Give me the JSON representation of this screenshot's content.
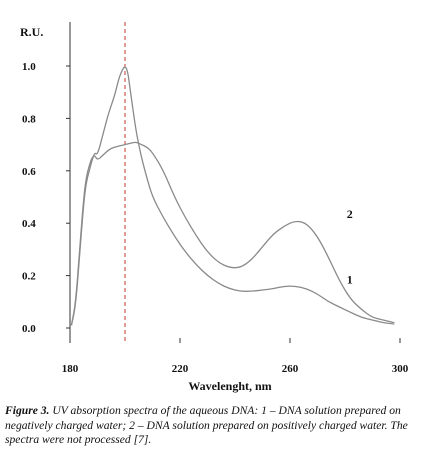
{
  "chart_data": {
    "type": "line",
    "ylabel": "R.U.",
    "xlabel": "Wavelenght, nm",
    "xlim": [
      180,
      300
    ],
    "ylim": [
      0,
      1.0
    ],
    "x_ticks": [
      "180",
      "220",
      "260",
      "300"
    ],
    "y_ticks": [
      "0.0",
      "0.2",
      "0.4",
      "0.6",
      "0.8",
      "1.0"
    ],
    "reference_line": {
      "x": 200,
      "style": "dashed",
      "color": "#c0392b"
    },
    "series": [
      {
        "name": "1",
        "color": "#8a8a8a",
        "x": [
          180.5,
          182,
          183.5,
          185,
          186,
          187,
          188,
          189,
          190,
          192,
          194,
          196,
          197,
          198,
          199,
          200,
          201,
          202,
          204,
          206,
          208,
          210,
          214,
          218,
          222,
          226,
          230,
          234,
          238,
          242,
          246,
          250,
          254,
          258,
          262,
          266,
          270,
          274,
          278,
          282,
          286,
          290,
          294,
          298
        ],
        "values": [
          0.01,
          0.08,
          0.28,
          0.48,
          0.56,
          0.6,
          0.64,
          0.67,
          0.66,
          0.74,
          0.82,
          0.88,
          0.92,
          0.96,
          0.985,
          1.0,
          0.98,
          0.9,
          0.75,
          0.65,
          0.57,
          0.5,
          0.42,
          0.35,
          0.29,
          0.24,
          0.2,
          0.17,
          0.15,
          0.14,
          0.14,
          0.145,
          0.15,
          0.16,
          0.16,
          0.15,
          0.13,
          0.1,
          0.08,
          0.06,
          0.04,
          0.03,
          0.02,
          0.015
        ]
      },
      {
        "name": "2",
        "color": "#8a8a8a",
        "x": [
          180.5,
          182,
          183.5,
          185,
          186,
          187,
          188,
          189,
          190,
          192,
          194,
          196,
          198,
          200,
          202,
          204,
          206,
          208,
          210,
          214,
          218,
          222,
          226,
          230,
          234,
          238,
          242,
          246,
          250,
          254,
          258,
          262,
          266,
          270,
          274,
          278,
          282,
          286,
          290,
          294,
          298
        ],
        "values": [
          0.01,
          0.09,
          0.3,
          0.5,
          0.58,
          0.62,
          0.65,
          0.66,
          0.64,
          0.66,
          0.68,
          0.69,
          0.695,
          0.7,
          0.705,
          0.71,
          0.7,
          0.69,
          0.67,
          0.6,
          0.5,
          0.42,
          0.35,
          0.29,
          0.25,
          0.23,
          0.23,
          0.26,
          0.31,
          0.36,
          0.39,
          0.41,
          0.4,
          0.35,
          0.27,
          0.18,
          0.11,
          0.07,
          0.04,
          0.03,
          0.02
        ]
      }
    ],
    "series_labels": [
      {
        "text": "1",
        "x": 281,
        "y": 0.17
      },
      {
        "text": "2",
        "x": 281,
        "y": 0.42
      }
    ]
  },
  "caption": {
    "figure_label": "Figure 3.",
    "text": "UV absorption spectra of the aqueous DNA: 1 – DNA solution prepared on negatively charged water; 2 – DNA solution prepared on positively charged water. The spectra were not processed [7]."
  }
}
